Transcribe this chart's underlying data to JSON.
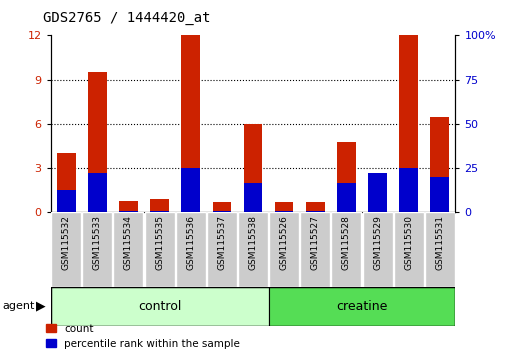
{
  "title": "GDS2765 / 1444420_at",
  "categories": [
    "GSM115532",
    "GSM115533",
    "GSM115534",
    "GSM115535",
    "GSM115536",
    "GSM115537",
    "GSM115538",
    "GSM115526",
    "GSM115527",
    "GSM115528",
    "GSM115529",
    "GSM115530",
    "GSM115531"
  ],
  "count_values": [
    4.0,
    9.5,
    0.8,
    0.9,
    12.0,
    0.7,
    6.0,
    0.7,
    0.7,
    4.8,
    2.0,
    12.0,
    6.5
  ],
  "percentile_values": [
    1.5,
    2.7,
    0.1,
    0.1,
    3.0,
    0.1,
    2.0,
    0.1,
    0.1,
    2.0,
    2.7,
    3.0,
    2.4
  ],
  "control_indices": [
    0,
    1,
    2,
    3,
    4,
    5,
    6
  ],
  "creatine_indices": [
    7,
    8,
    9,
    10,
    11,
    12
  ],
  "left_ylim": [
    0,
    12
  ],
  "right_ylim": [
    0,
    100
  ],
  "left_yticks": [
    0,
    3,
    6,
    9,
    12
  ],
  "right_yticks": [
    0,
    25,
    50,
    75,
    100
  ],
  "bar_color_red": "#cc2200",
  "bar_color_blue": "#0000cc",
  "bar_width": 0.6,
  "control_label": "control",
  "creatine_label": "creatine",
  "agent_label": "agent",
  "legend_count": "count",
  "legend_percentile": "percentile rank within the sample",
  "control_color": "#ccffcc",
  "creatine_color": "#55dd55",
  "tick_bg_color": "#cccccc",
  "title_fontsize": 10,
  "tick_fontsize": 6.5,
  "group_label_fontsize": 9,
  "grid_yticks": [
    3,
    6,
    9
  ],
  "right_tick_labels": [
    "0",
    "25",
    "50",
    "75",
    "100%"
  ]
}
